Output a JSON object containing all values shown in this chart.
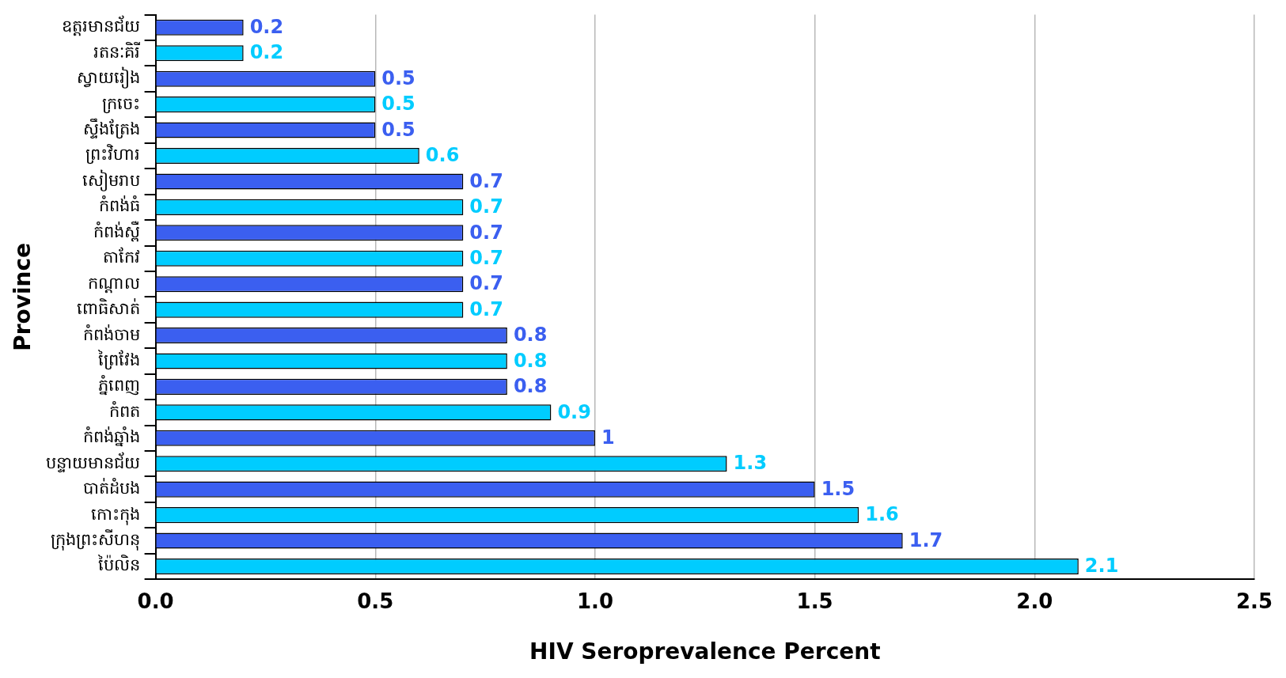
{
  "chart_data": {
    "type": "bar",
    "orientation": "horizontal",
    "xlabel": "HIV Seroprevalence Percent",
    "ylabel": "Province",
    "categories": [
      "ឧត្តរមានជ័យ",
      "រតនៈគិរី",
      "ស្វាយរៀង",
      "ក្រចេះ",
      "ស្ទឹងត្រែង",
      "ព្រះវិហារ",
      "សៀមរាប",
      "កំពង់ធំ",
      "កំពង់ស្ពឺ",
      "តាកែវ",
      "កណ្ដាល",
      "ពោធិសាត់",
      "កំពង់ចាម",
      "ព្រៃវែង",
      "ភ្នំពេញ",
      "កំពត",
      "កំពង់ឆ្នាំង",
      "បន្ទាយមានជ័យ",
      "បាត់ដំបង",
      "កោះកុង",
      "ក្រុងព្រះសីហនុ",
      "ប៉ៃលិន"
    ],
    "values": [
      0.2,
      0.2,
      0.5,
      0.5,
      0.5,
      0.6,
      0.7,
      0.7,
      0.7,
      0.7,
      0.7,
      0.7,
      0.8,
      0.8,
      0.8,
      0.9,
      1,
      1.3,
      1.5,
      1.6,
      1.7,
      2.1
    ],
    "colors": [
      "#3b5ff0",
      "#00ccff",
      "#3b5ff0",
      "#00ccff",
      "#3b5ff0",
      "#00ccff",
      "#3b5ff0",
      "#00ccff",
      "#3b5ff0",
      "#00ccff",
      "#3b5ff0",
      "#00ccff",
      "#3b5ff0",
      "#00ccff",
      "#3b5ff0",
      "#00ccff",
      "#3b5ff0",
      "#00ccff",
      "#3b5ff0",
      "#00ccff",
      "#3b5ff0",
      "#00ccff"
    ],
    "xlim": [
      0,
      2.5
    ],
    "xticks": [
      {
        "value": 0,
        "label": "0.0"
      },
      0.5,
      {
        "value": 1,
        "label": "1.0"
      },
      1.5,
      {
        "value": 2,
        "label": "2.0"
      },
      2.5
    ],
    "grid": "x",
    "data_labels": true
  }
}
